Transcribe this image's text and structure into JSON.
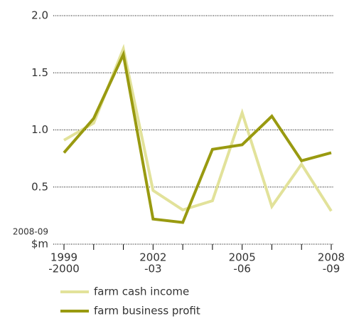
{
  "chart_data": {
    "type": "line",
    "categories": [
      [
        "1999",
        "-2000"
      ],
      null,
      null,
      [
        "2002",
        "-03"
      ],
      null,
      null,
      [
        "2005",
        "-06"
      ],
      null,
      null,
      [
        "2008",
        "-09"
      ]
    ],
    "series": [
      {
        "name": "farm cash income",
        "color": "#e2e29a",
        "values": [
          0.91,
          1.06,
          1.71,
          0.47,
          0.3,
          0.38,
          1.15,
          0.33,
          0.7,
          0.29
        ]
      },
      {
        "name": "farm business profit",
        "color": "#999a10",
        "values": [
          0.8,
          1.1,
          1.66,
          0.22,
          0.19,
          0.83,
          0.87,
          1.12,
          0.73,
          0.8
        ]
      }
    ],
    "ylabel_lines": [
      "2008-09",
      "$m"
    ],
    "ylim": [
      0,
      2
    ],
    "yticks": [
      {
        "value": 0.5,
        "label": "0.5"
      },
      {
        "value": 1,
        "label": "1.0"
      },
      1.5,
      {
        "value": 2,
        "label": "2.0"
      }
    ],
    "grid": true
  }
}
